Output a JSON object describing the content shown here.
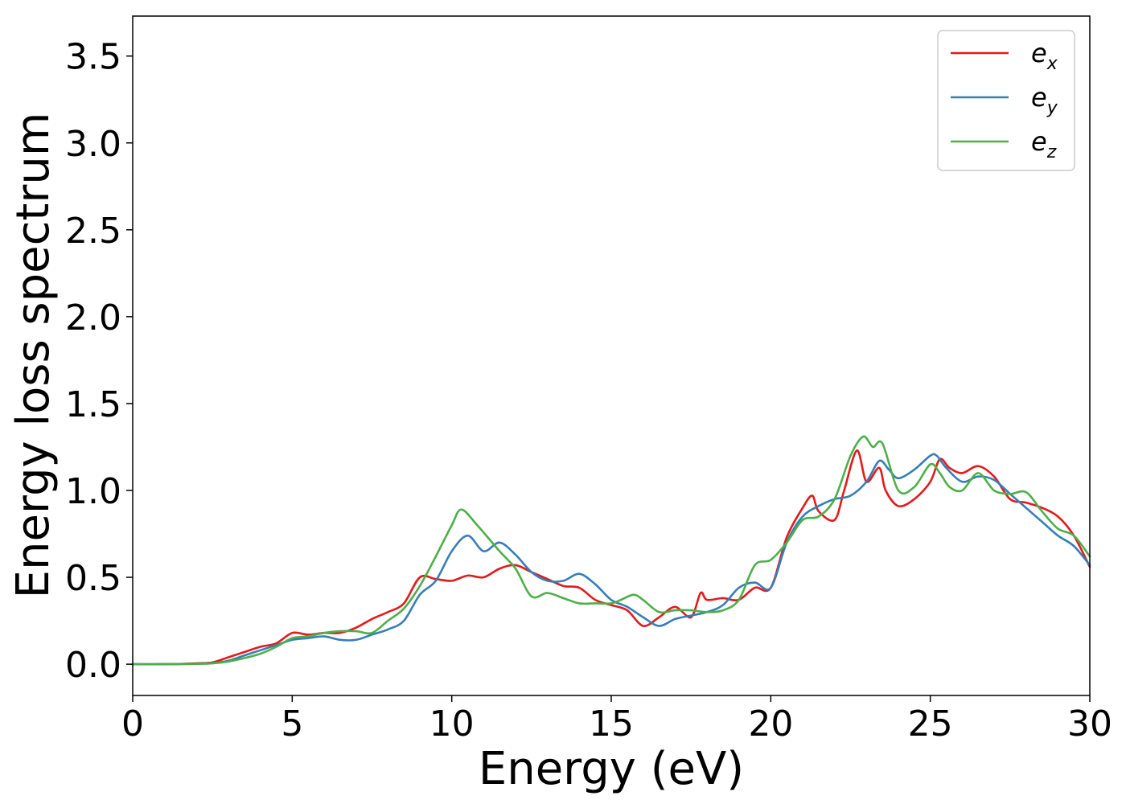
{
  "chart_data": {
    "type": "line",
    "xlabel": "Energy (eV)",
    "ylabel": "Energy loss spectrum",
    "xlim": [
      0,
      30
    ],
    "ylim": [
      -0.18,
      3.73
    ],
    "xticks": [
      0,
      5,
      10,
      15,
      20,
      25,
      30
    ],
    "xtick_labels": [
      "0",
      "5",
      "10",
      "15",
      "20",
      "25",
      "30"
    ],
    "yticks": [
      0.0,
      0.5,
      1.0,
      1.5,
      2.0,
      2.5,
      3.0,
      3.5
    ],
    "ytick_labels": [
      "0.0",
      "0.5",
      "1.0",
      "1.5",
      "2.0",
      "2.5",
      "3.0",
      "3.5"
    ],
    "grid": false,
    "legend_position": "top-right",
    "series": [
      {
        "name": "e",
        "subscript": "x",
        "color": "#e41a1c",
        "x": [
          0,
          1,
          2,
          2.5,
          3,
          3.5,
          4,
          4.5,
          5,
          5.5,
          6,
          6.5,
          7,
          7.5,
          8,
          8.5,
          9,
          9.5,
          10,
          10.5,
          11,
          11.5,
          12,
          12.5,
          13,
          13.5,
          14,
          14.5,
          15,
          15.5,
          16,
          16.5,
          17,
          17.5,
          17.8,
          18,
          18.5,
          19,
          19.5,
          20,
          20.5,
          21,
          21.3,
          21.5,
          22,
          22.3,
          22.7,
          23,
          23.4,
          23.6,
          24,
          24.5,
          25,
          25.3,
          25.6,
          26,
          26.5,
          27,
          27.5,
          28,
          28.5,
          29,
          29.5,
          30
        ],
        "values": [
          0.0,
          0.0,
          0.005,
          0.01,
          0.04,
          0.07,
          0.1,
          0.12,
          0.18,
          0.17,
          0.18,
          0.18,
          0.21,
          0.26,
          0.3,
          0.35,
          0.5,
          0.49,
          0.48,
          0.51,
          0.5,
          0.55,
          0.57,
          0.53,
          0.49,
          0.45,
          0.44,
          0.37,
          0.34,
          0.31,
          0.22,
          0.27,
          0.33,
          0.27,
          0.41,
          0.37,
          0.38,
          0.37,
          0.44,
          0.44,
          0.73,
          0.9,
          0.97,
          0.88,
          0.83,
          1.0,
          1.23,
          1.05,
          1.13,
          1.0,
          0.91,
          0.95,
          1.05,
          1.18,
          1.13,
          1.1,
          1.14,
          1.08,
          0.95,
          0.93,
          0.9,
          0.85,
          0.74,
          0.56
        ]
      },
      {
        "name": "e",
        "subscript": "y",
        "color": "#377eb8",
        "x": [
          0,
          1,
          2,
          2.5,
          3,
          3.5,
          4,
          4.5,
          5,
          5.5,
          6,
          6.5,
          7,
          7.5,
          8,
          8.5,
          9,
          9.5,
          10,
          10.5,
          11,
          11.5,
          12,
          12.5,
          13,
          13.5,
          14,
          14.5,
          15,
          15.5,
          16,
          16.5,
          17,
          17.5,
          18,
          18.5,
          19,
          19.5,
          20,
          20.5,
          21,
          21.5,
          22,
          22.5,
          23,
          23.4,
          23.7,
          24,
          24.5,
          25,
          25.2,
          25.5,
          26,
          26.5,
          27,
          27.5,
          28,
          28.5,
          29,
          29.5,
          30
        ],
        "values": [
          0.0,
          0.0,
          0.002,
          0.006,
          0.02,
          0.05,
          0.08,
          0.11,
          0.14,
          0.15,
          0.16,
          0.14,
          0.14,
          0.17,
          0.2,
          0.25,
          0.4,
          0.48,
          0.65,
          0.74,
          0.65,
          0.7,
          0.63,
          0.53,
          0.48,
          0.48,
          0.52,
          0.46,
          0.37,
          0.33,
          0.27,
          0.22,
          0.26,
          0.28,
          0.3,
          0.34,
          0.44,
          0.47,
          0.44,
          0.7,
          0.85,
          0.91,
          0.95,
          0.97,
          1.05,
          1.17,
          1.12,
          1.07,
          1.12,
          1.2,
          1.2,
          1.13,
          1.05,
          1.08,
          1.06,
          0.98,
          0.9,
          0.82,
          0.74,
          0.68,
          0.57
        ]
      },
      {
        "name": "e",
        "subscript": "z",
        "color": "#4daf4a",
        "x": [
          0,
          1,
          2,
          2.5,
          3,
          3.5,
          4,
          4.5,
          5,
          5.5,
          6,
          6.5,
          7,
          7.5,
          8,
          8.5,
          9,
          9.5,
          10,
          10.3,
          10.8,
          11.5,
          12,
          12.5,
          13,
          13.5,
          14,
          14.5,
          15,
          15.3,
          15.7,
          16,
          16.5,
          17,
          17.5,
          18,
          18.5,
          19,
          19.5,
          20,
          20.5,
          21,
          21.5,
          22,
          22.5,
          22.9,
          23.2,
          23.5,
          24,
          24.5,
          25,
          25.3,
          25.6,
          26,
          26.5,
          27,
          27.5,
          28,
          28.5,
          29,
          29.5,
          30
        ],
        "values": [
          0.0,
          0.0,
          0.002,
          0.005,
          0.015,
          0.035,
          0.06,
          0.1,
          0.15,
          0.16,
          0.18,
          0.19,
          0.19,
          0.18,
          0.25,
          0.32,
          0.45,
          0.62,
          0.8,
          0.89,
          0.8,
          0.65,
          0.55,
          0.39,
          0.41,
          0.38,
          0.35,
          0.35,
          0.35,
          0.37,
          0.4,
          0.37,
          0.3,
          0.31,
          0.31,
          0.3,
          0.31,
          0.37,
          0.57,
          0.6,
          0.7,
          0.83,
          0.85,
          0.95,
          1.2,
          1.31,
          1.25,
          1.27,
          1.0,
          1.02,
          1.15,
          1.1,
          1.02,
          1.0,
          1.1,
          1.0,
          0.98,
          0.99,
          0.88,
          0.78,
          0.74,
          0.62
        ]
      }
    ]
  }
}
